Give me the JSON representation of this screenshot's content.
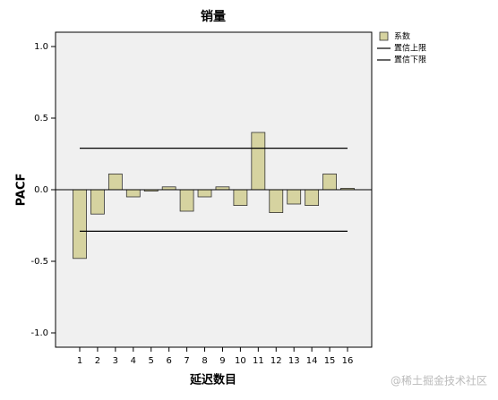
{
  "chart_data": {
    "type": "bar",
    "title": "销量",
    "x_label": "延迟数目",
    "y_label": "PACF",
    "categories": [
      "1",
      "2",
      "3",
      "4",
      "5",
      "6",
      "7",
      "8",
      "9",
      "10",
      "11",
      "12",
      "13",
      "14",
      "15",
      "16"
    ],
    "series": [
      {
        "name": "系数",
        "color": "#d6d3a0",
        "values": [
          -0.48,
          -0.17,
          0.11,
          -0.05,
          -0.01,
          0.02,
          -0.15,
          -0.05,
          0.02,
          -0.11,
          0.4,
          -0.16,
          -0.1,
          -0.11,
          0.11,
          0.01
        ]
      },
      {
        "name": "置信上限",
        "color": "#000000",
        "values": [
          0.29,
          0.29,
          0.29,
          0.29,
          0.29,
          0.29,
          0.29,
          0.29,
          0.29,
          0.29,
          0.29,
          0.29,
          0.29,
          0.29,
          0.29,
          0.29
        ]
      },
      {
        "name": "置信下限",
        "color": "#000000",
        "values": [
          -0.29,
          -0.29,
          -0.29,
          -0.29,
          -0.29,
          -0.29,
          -0.29,
          -0.29,
          -0.29,
          -0.29,
          -0.29,
          -0.29,
          -0.29,
          -0.29,
          -0.29,
          -0.29
        ]
      }
    ],
    "ylim": [
      -1.1,
      1.1
    ],
    "yticks": [
      {
        "value": -1.0,
        "label": "-1.0"
      },
      {
        "value": -0.5,
        "label": "-0.5"
      },
      {
        "value": 0.0,
        "label": "0.0"
      },
      {
        "value": 0.5,
        "label": "0.5"
      },
      {
        "value": 1.0,
        "label": "1.0"
      }
    ],
    "watermark": "@稀土掘金技术社区"
  }
}
